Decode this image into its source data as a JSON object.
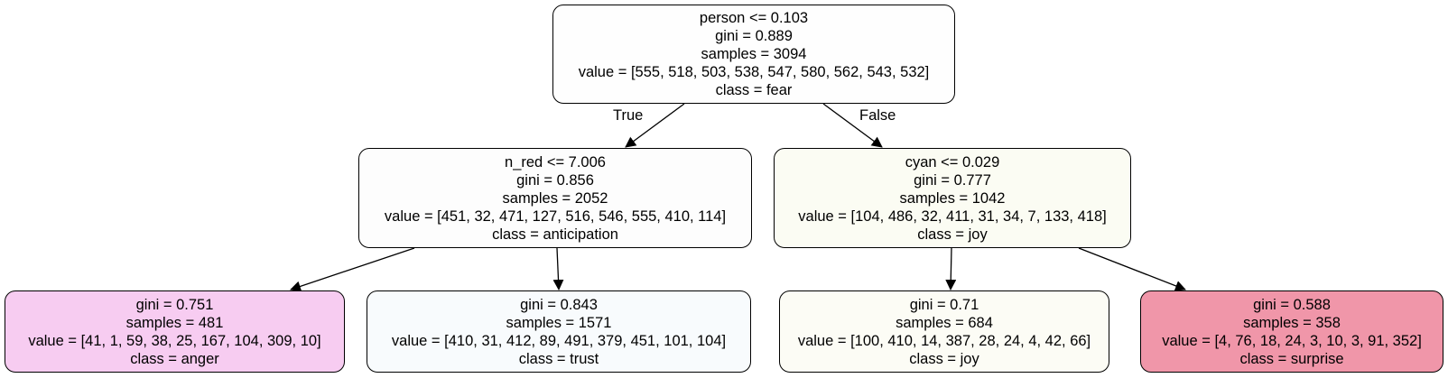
{
  "tree": {
    "root": {
      "lines": [
        "person <= 0.103",
        "gini = 0.889",
        "samples = 3094",
        "value = [555, 518, 503, 538, 547, 580, 562, 543, 532]",
        "class = fear"
      ],
      "fill": "#fefefe"
    },
    "left": {
      "lines": [
        "n_red <= 7.006",
        "gini = 0.856",
        "samples = 2052",
        "value = [451, 32, 471, 127, 516, 546, 555, 410, 114]",
        "class = anticipation"
      ],
      "fill": "#fdfdfd"
    },
    "right": {
      "lines": [
        "cyan <= 0.029",
        "gini = 0.777",
        "samples = 1042",
        "value = [104, 486, 32, 411, 31, 34, 7, 133, 418]",
        "class = joy"
      ],
      "fill": "#fbfcf3"
    },
    "left_left": {
      "lines": [
        "gini = 0.751",
        "samples = 481",
        "value = [41, 1, 59, 38, 25, 167, 104, 309, 10]",
        "class = anger"
      ],
      "fill": "#f7ccf1"
    },
    "left_right": {
      "lines": [
        "gini = 0.843",
        "samples = 1571",
        "value = [410, 31, 412, 89, 491, 379, 451, 101, 104]",
        "class = trust"
      ],
      "fill": "#f8fbfd"
    },
    "right_left": {
      "lines": [
        "gini = 0.71",
        "samples = 684",
        "value = [100, 410, 14, 387, 28, 24, 4, 42, 66]",
        "class = joy"
      ],
      "fill": "#fcfcf5"
    },
    "right_right": {
      "lines": [
        "gini = 0.588",
        "samples = 358",
        "value = [4, 76, 18, 24, 3, 10, 3, 91, 352]",
        "class = surprise"
      ],
      "fill": "#f096a9"
    }
  },
  "edge_labels": {
    "true": "True",
    "false": "False"
  }
}
